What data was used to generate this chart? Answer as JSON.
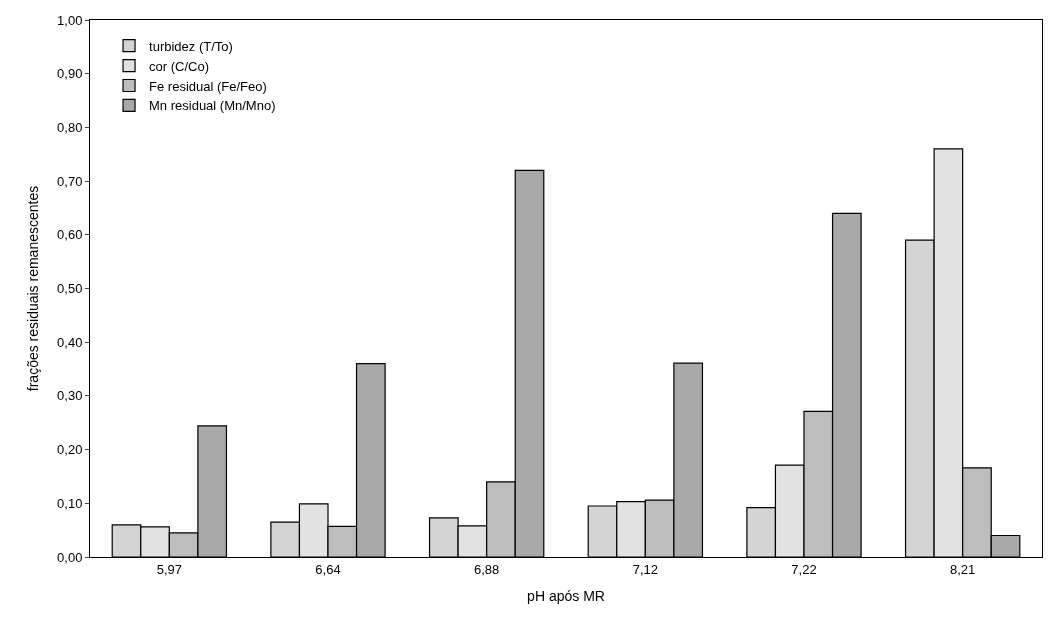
{
  "chart_data": {
    "type": "bar",
    "xlabel": "pH após MR",
    "ylabel": "frações residuais remanescentes",
    "categories": [
      "5,97",
      "6,64",
      "6,88",
      "7,12",
      "7,22",
      "8,21"
    ],
    "series": [
      {
        "name": "turbidez (T/To)",
        "color": "#d4d4d4",
        "values": [
          0.06,
          0.065,
          0.073,
          0.095,
          0.092,
          0.59
        ]
      },
      {
        "name": "cor (C/Co)",
        "color": "#e2e2e2",
        "values": [
          0.056,
          0.099,
          0.058,
          0.103,
          0.171,
          0.76
        ]
      },
      {
        "name": "Fe residual (Fe/Feo)",
        "color": "#bdbdbd",
        "values": [
          0.045,
          0.057,
          0.14,
          0.106,
          0.271,
          0.166
        ]
      },
      {
        "name": "Mn residual (Mn/Mno)",
        "color": "#a9a9a9",
        "values": [
          0.244,
          0.36,
          0.72,
          0.361,
          0.64,
          0.04
        ]
      }
    ],
    "ylim": [
      0,
      1
    ],
    "yticks": [
      {
        "value": 0,
        "label": "0,00"
      },
      {
        "value": 0.1,
        "label": "0,10"
      },
      {
        "value": 0.2,
        "label": "0,20"
      },
      {
        "value": 0.3,
        "label": "0,30"
      },
      {
        "value": 0.4,
        "label": "0,40"
      },
      {
        "value": 0.5,
        "label": "0,50"
      },
      {
        "value": 0.6,
        "label": "0,60"
      },
      {
        "value": 0.7,
        "label": "0,70"
      },
      {
        "value": 0.8,
        "label": "0,80"
      },
      {
        "value": 0.9,
        "label": "0,90"
      },
      {
        "value": 1,
        "label": "1,00"
      }
    ],
    "legend": "top left"
  }
}
